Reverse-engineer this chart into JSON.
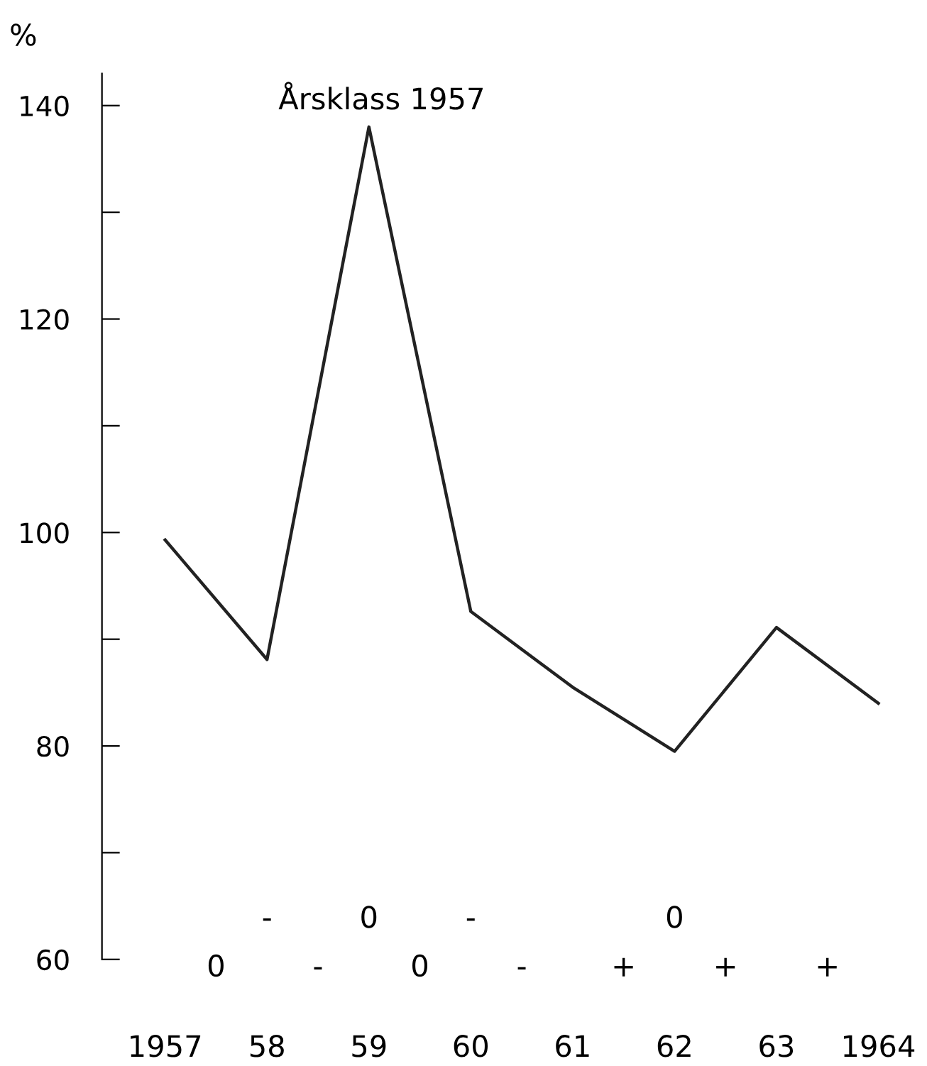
{
  "chart_data": {
    "type": "line",
    "title": "Årsklass 1957",
    "ylabel": "%",
    "categories": [
      "1957",
      "58",
      "59",
      "60",
      "61",
      "62",
      "63",
      "1964"
    ],
    "series": [
      {
        "color": "#222222",
        "values": [
          99.3,
          88.1,
          138,
          92.6,
          85.5,
          79.5,
          91.1,
          84
        ]
      }
    ],
    "ylim": [
      60,
      143
    ],
    "yticks": [
      60,
      {
        "value": 70,
        "label": null
      },
      80,
      {
        "value": 90,
        "label": null
      },
      100,
      {
        "value": 110,
        "label": null
      },
      120,
      {
        "value": 130,
        "label": null
      },
      140
    ],
    "annotations": [
      "0",
      "-",
      "0",
      "-",
      "+",
      "+",
      "+",
      "-",
      "0",
      "-",
      "0"
    ],
    "grid": false,
    "legend": false,
    "marker": "none",
    "line_style": "solid"
  }
}
